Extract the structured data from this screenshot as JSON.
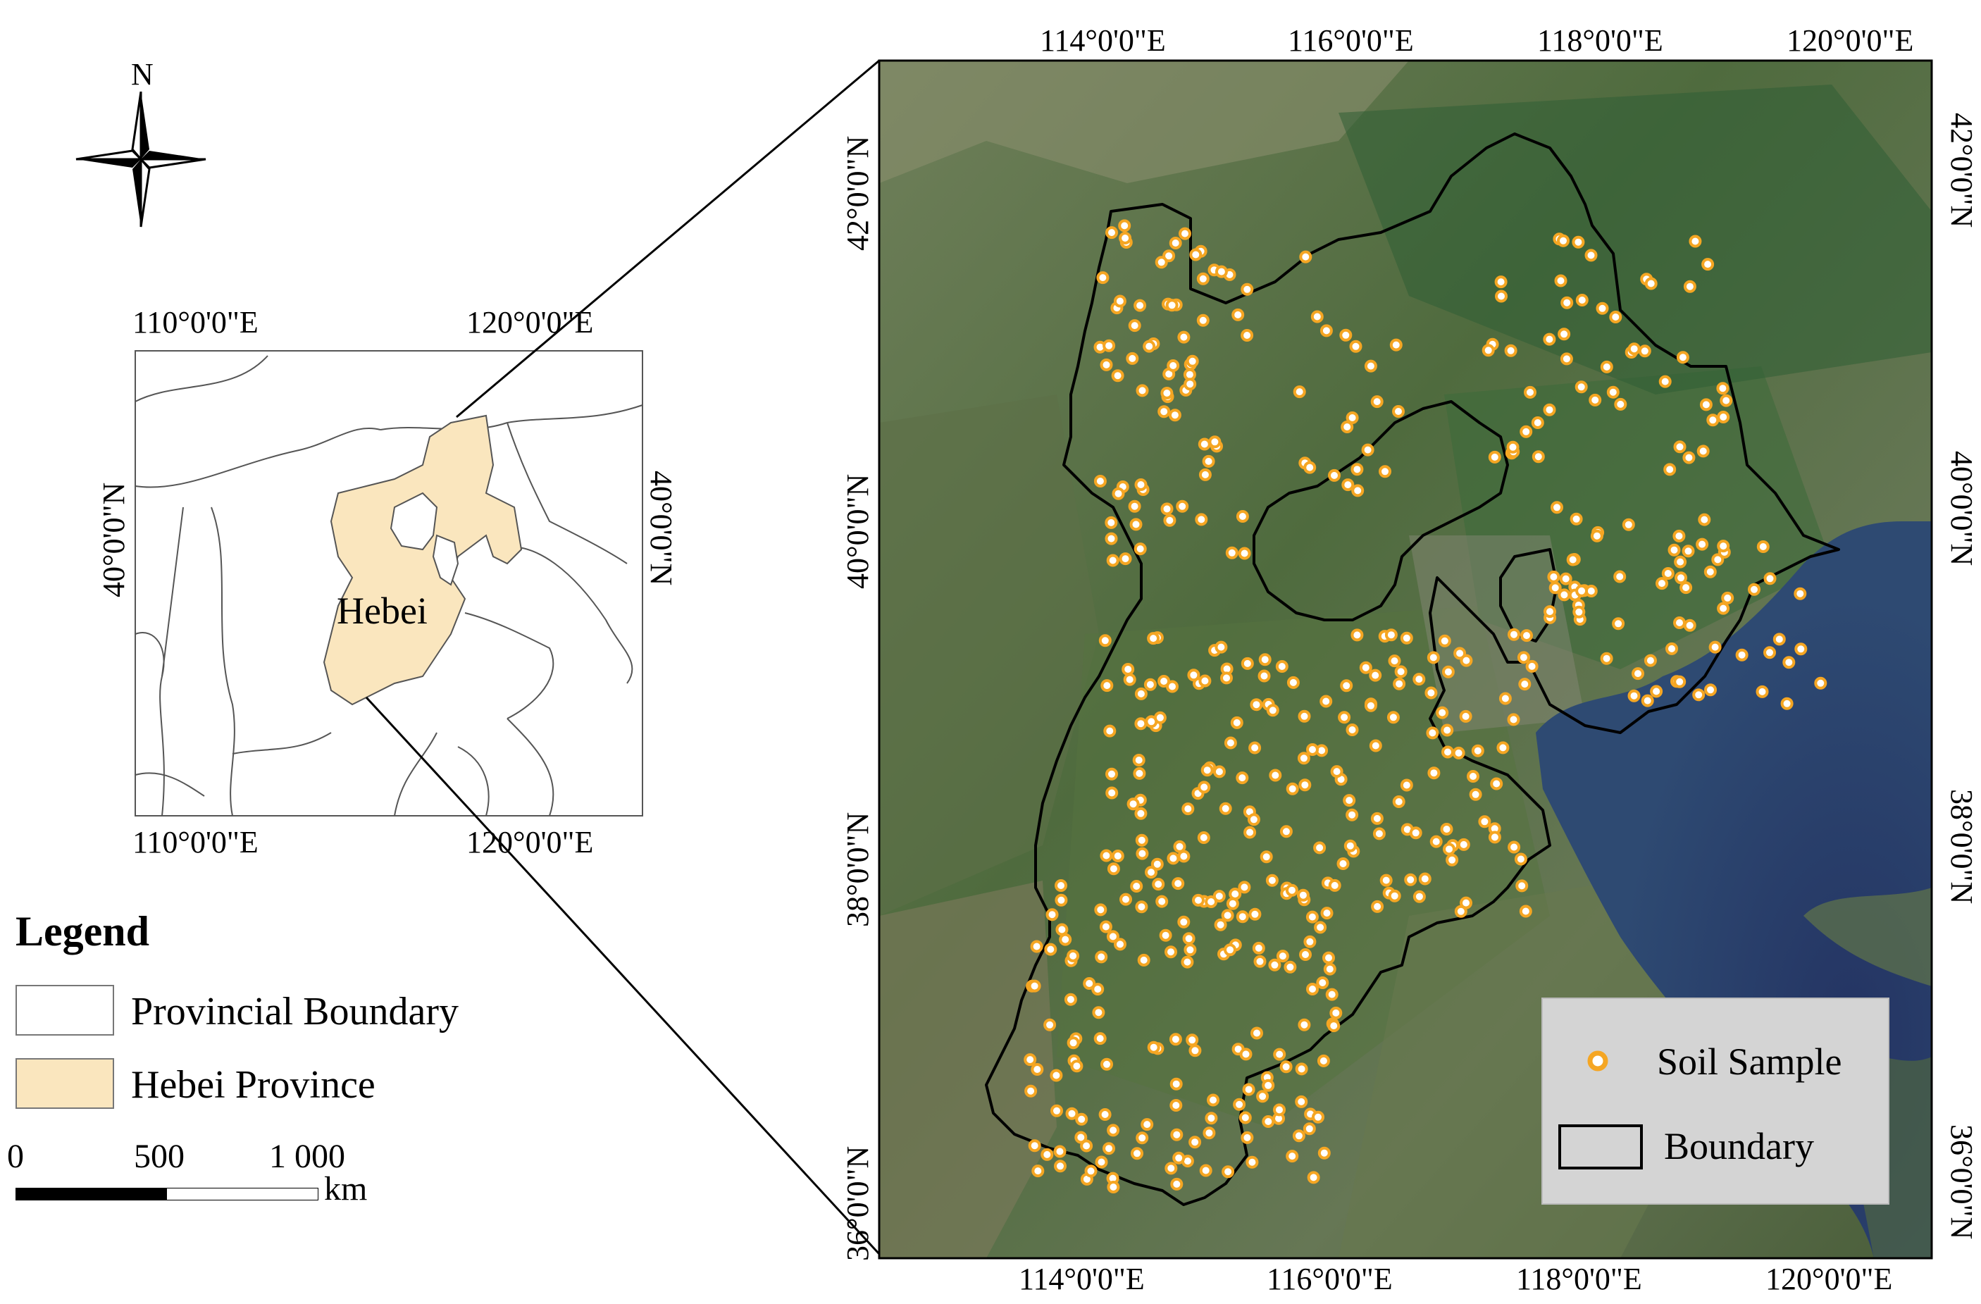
{
  "compass": {
    "north_label": "N"
  },
  "locator": {
    "top_ticks": [
      "110°0'0\"E",
      "120°0'0\"E"
    ],
    "bottom_ticks": [
      "110°0'0\"E",
      "120°0'0\"E"
    ],
    "left_tick": "40°0'0\"N",
    "right_tick": "40°0'0\"N",
    "province_label": "Hebei",
    "colors": {
      "province_fill": "#FAE6BE",
      "boundary": "#444444"
    }
  },
  "legend": {
    "title": "Legend",
    "items": [
      {
        "label": "Provincial Boundary",
        "swatch": "#ffffff"
      },
      {
        "label": "Hebei Province",
        "swatch": "#FAE6BE"
      }
    ]
  },
  "scale_bar": {
    "labels": [
      "0",
      "500",
      "1 000"
    ],
    "unit": "km"
  },
  "main_map": {
    "top_ticks": [
      "114°0'0\"E",
      "116°0'0\"E",
      "118°0'0\"E",
      "120°0'0\"E"
    ],
    "bottom_ticks": [
      "114°0'0\"E",
      "116°0'0\"E",
      "118°0'0\"E",
      "120°0'0\"E"
    ],
    "left_ticks": [
      "42°0'0\"N",
      "40°0'0\"N",
      "38°0'0\"N",
      "36°0'0\"N"
    ],
    "right_ticks": [
      "42°0'0\"N",
      "40°0'0\"N",
      "38°0'0\"N",
      "36°0'0\"N"
    ],
    "inset_legend": {
      "items": [
        {
          "label": "Soil Sample",
          "icon": "orange-ring-dot"
        },
        {
          "label": "Boundary",
          "icon": "black-outline-box"
        }
      ]
    },
    "colors": {
      "land_dark": "#3a5a34",
      "land_mid": "#5d7a48",
      "land_light": "#9b9d7c",
      "sea": "#2a3d6e",
      "sample_fill": "#ffffff",
      "sample_ring": "#F5A623",
      "boundary": "#000000"
    }
  }
}
